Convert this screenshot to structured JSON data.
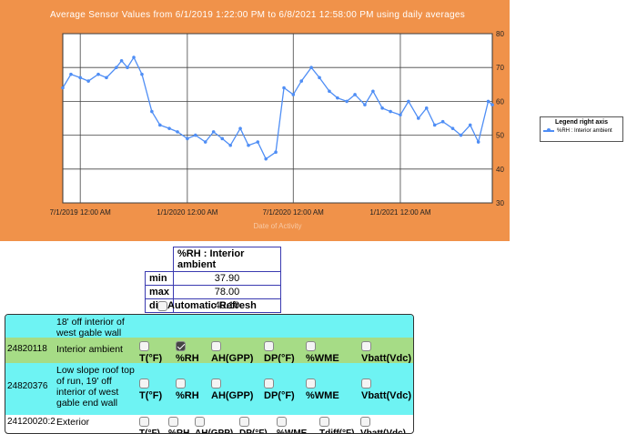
{
  "chart": {
    "title": "Average Sensor Values from 6/1/2019 1:22:00 PM to 6/8/2021 12:58:00 PM using daily averages",
    "x_axis_title": "Date of Activity",
    "x_ticks": [
      "7/1/2019 12:00 AM",
      "1/1/2020 12:00 AM",
      "7/1/2020 12:00 AM",
      "1/1/2021 12:00 AM"
    ],
    "y_ticks": [
      "80",
      "70",
      "60",
      "50",
      "40",
      "30"
    ],
    "legend_title": "Legend right axis",
    "legend_item": "%RH : Interior ambient",
    "series_color": "#4f8ef5"
  },
  "chart_data": {
    "type": "line",
    "title": "Average Sensor Values from 6/1/2019 1:22:00 PM to 6/8/2021 12:58:00 PM using daily averages",
    "xlabel": "Date of Activity",
    "ylabel": "",
    "ylim": [
      30,
      80
    ],
    "xlim": [
      "2019-06-01",
      "2021-06-08"
    ],
    "y_axis_side": "right",
    "grid": true,
    "legend_position": "right",
    "series": [
      {
        "name": "%RH : Interior ambient",
        "x": [
          "2019-06-01",
          "2019-06-15",
          "2019-07-01",
          "2019-07-15",
          "2019-08-01",
          "2019-08-15",
          "2019-09-01",
          "2019-09-10",
          "2019-09-20",
          "2019-10-01",
          "2019-10-15",
          "2019-11-01",
          "2019-11-15",
          "2019-12-01",
          "2019-12-15",
          "2020-01-01",
          "2020-01-15",
          "2020-02-01",
          "2020-02-15",
          "2020-03-01",
          "2020-03-15",
          "2020-04-01",
          "2020-04-15",
          "2020-05-01",
          "2020-05-15",
          "2020-06-01",
          "2020-06-15",
          "2020-07-01",
          "2020-07-15",
          "2020-08-01",
          "2020-08-15",
          "2020-09-01",
          "2020-09-15",
          "2020-10-01",
          "2020-10-15",
          "2020-11-01",
          "2020-11-15",
          "2020-12-01",
          "2020-12-15",
          "2021-01-01",
          "2021-01-15",
          "2021-02-01",
          "2021-02-15",
          "2021-03-01",
          "2021-03-15",
          "2021-04-01",
          "2021-04-15",
          "2021-05-01",
          "2021-05-15",
          "2021-06-01",
          "2021-06-08"
        ],
        "y": [
          64,
          68,
          67,
          66,
          68,
          67,
          70,
          72,
          70,
          73,
          68,
          57,
          53,
          52,
          51,
          49,
          50,
          48,
          51,
          49,
          47,
          52,
          47,
          48,
          43,
          45,
          64,
          62,
          66,
          70,
          67,
          63,
          61,
          60,
          62,
          59,
          63,
          58,
          57,
          56,
          60,
          55,
          58,
          53,
          54,
          52,
          50,
          53,
          48,
          60,
          59
        ]
      }
    ]
  },
  "stats": {
    "header": "%RH : Interior ambient",
    "rows": [
      {
        "label": "min",
        "value": "37.90"
      },
      {
        "label": "max",
        "value": "78.00"
      },
      {
        "label": "diff",
        "value": "40.10"
      }
    ]
  },
  "auto_refresh_label": "Automatic Refresh",
  "sensor_rows": [
    {
      "id": "",
      "name": "18' off interior of west gable wall",
      "options": [
        "T(°F)",
        "%RH",
        "AH(GPP)",
        "DP(°F)",
        "%WME",
        "Vbatt(Vdc)"
      ]
    },
    {
      "id": "24820118",
      "name": "Interior ambient",
      "options": [
        "T(°F)",
        "%RH",
        "AH(GPP)",
        "DP(°F)",
        "%WME",
        "Vbatt(Vdc)"
      ]
    },
    {
      "id": "24820376",
      "name": "Low slope roof top of run, 19' off interior of west gable end wall",
      "options": [
        "T(°F)",
        "%RH",
        "AH(GPP)",
        "DP(°F)",
        "%WME",
        "Vbatt(Vdc)"
      ]
    },
    {
      "id": "24120020:2",
      "name": "Exterior",
      "options": [
        "T(°F)",
        "%RH",
        "AH(GPP)",
        "DP(°F)",
        "%WME",
        "Tdiff(°F)",
        "Vbatt(Vdc)"
      ]
    }
  ]
}
